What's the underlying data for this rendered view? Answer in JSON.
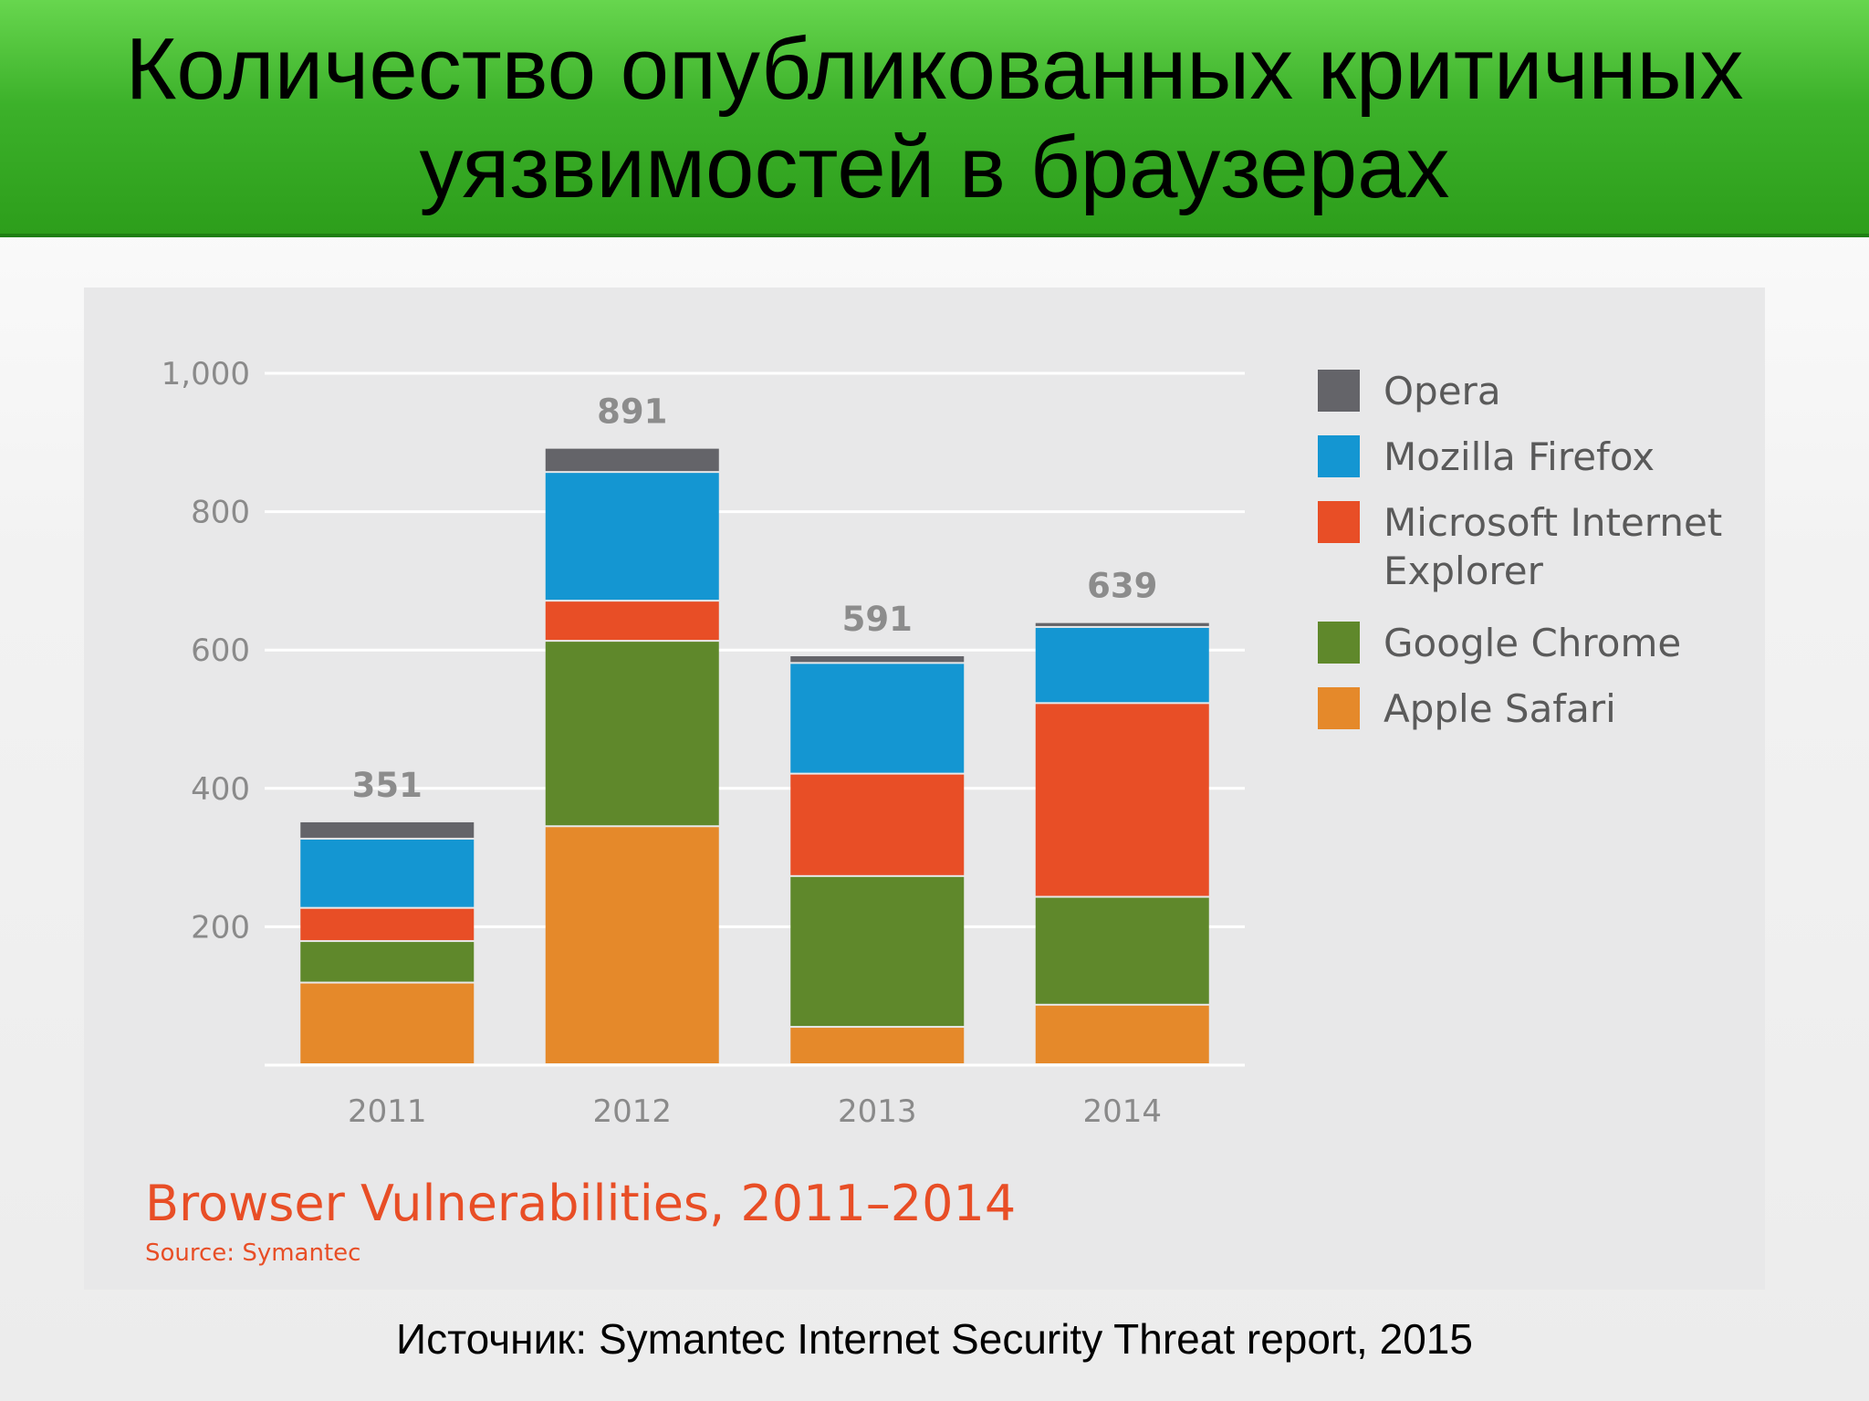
{
  "slide": {
    "title_line1": "Количество опубликованных критичных",
    "title_line2": "уязвимостей в браузерах",
    "source": "Источник: Symantec Internet Security Threat report, 2015"
  },
  "chart_data": {
    "type": "bar",
    "stacked": true,
    "title": "Browser Vulnerabilities, 2011–2014",
    "source": "Source: Symantec",
    "categories": [
      "2011",
      "2012",
      "2013",
      "2014"
    ],
    "totals": [
      351,
      891,
      591,
      639
    ],
    "total_labels": [
      "351",
      "891",
      "591",
      "639"
    ],
    "ylim": [
      0,
      1000
    ],
    "yticks": [
      200,
      400,
      600,
      800,
      1000
    ],
    "ytick_labels": [
      "200",
      "400",
      "600",
      "800",
      "1,000"
    ],
    "grid": true,
    "legend_position": "right",
    "series": [
      {
        "name": "Apple Safari",
        "color": "#e5892a",
        "values": [
          118,
          344,
          54,
          86
        ]
      },
      {
        "name": "Google Chrome",
        "color": "#5f882b",
        "values": [
          60,
          268,
          218,
          156
        ]
      },
      {
        "name": "Microsoft Internet Explorer",
        "color": "#e84e26",
        "values": [
          48,
          58,
          148,
          280
        ]
      },
      {
        "name": "Mozilla Firefox",
        "color": "#1496d2",
        "values": [
          100,
          186,
          160,
          110
        ]
      },
      {
        "name": "Opera",
        "color": "#646469",
        "values": [
          25,
          35,
          11,
          7
        ]
      }
    ],
    "legend": [
      {
        "lines": [
          "Opera"
        ],
        "color": "#646469"
      },
      {
        "lines": [
          "Mozilla Firefox"
        ],
        "color": "#1496d2"
      },
      {
        "lines": [
          "Microsoft Internet",
          "Explorer"
        ],
        "color": "#e84e26"
      },
      {
        "lines": [
          "Google Chrome"
        ],
        "color": "#5f882b"
      },
      {
        "lines": [
          "Apple Safari"
        ],
        "color": "#e5892a"
      }
    ]
  }
}
